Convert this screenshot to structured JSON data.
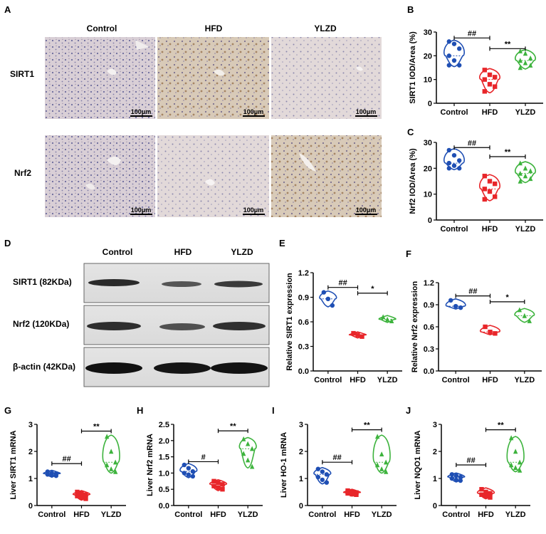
{
  "panel_labels": [
    "A",
    "B",
    "C",
    "D",
    "E",
    "F",
    "G",
    "H",
    "I",
    "J"
  ],
  "ihc": {
    "columns": [
      "Control",
      "HFD",
      "YLZD"
    ],
    "rows": [
      "SIRT1",
      "Nrf2"
    ],
    "scale_bar": "100μm"
  },
  "western_blot": {
    "columns": [
      "Control",
      "HFD",
      "YLZD"
    ],
    "rows": [
      "SIRT1 (82KDa)",
      "Nrf2 (120KDa)",
      "β-actin (42KDa)"
    ]
  },
  "colors": {
    "Control": "#1f4fb4",
    "HFD": "#e8262a",
    "YLZD": "#3db33d"
  },
  "chart_data": [
    {
      "id": "B",
      "type": "violin",
      "ylabel": "SIRT1  IOD/Area (%)",
      "categories": [
        "Control",
        "HFD",
        "YLZD"
      ],
      "ylim": [
        0,
        30
      ],
      "yticks": [
        "0",
        "10",
        "20",
        "30"
      ],
      "points": [
        [
          26,
          25,
          23,
          20,
          18,
          16,
          16
        ],
        [
          14,
          12,
          11,
          10,
          8,
          7,
          5
        ],
        [
          22,
          21,
          19,
          18,
          17,
          16,
          15
        ]
      ],
      "brackets": [
        {
          "from": 0,
          "to": 1,
          "y": 27.5,
          "label": "##"
        },
        {
          "from": 1,
          "to": 2,
          "y": 23,
          "label": "**"
        }
      ]
    },
    {
      "id": "C",
      "type": "violin",
      "ylabel": "Nrf2  IOD/Area (%)",
      "categories": [
        "Control",
        "HFD",
        "YLZD"
      ],
      "ylim": [
        0,
        30
      ],
      "yticks": [
        "0",
        "10",
        "20",
        "30"
      ],
      "points": [
        [
          27,
          25,
          23,
          22,
          21,
          20,
          20
        ],
        [
          17,
          15,
          14,
          12,
          11,
          9,
          8
        ],
        [
          22,
          20,
          19,
          18,
          17,
          16,
          15
        ]
      ],
      "brackets": [
        {
          "from": 0,
          "to": 1,
          "y": 28,
          "label": "##"
        },
        {
          "from": 1,
          "to": 2,
          "y": 24.5,
          "label": "**"
        }
      ]
    },
    {
      "id": "E",
      "type": "violin",
      "ylabel": "Relative SIRT1 expression",
      "categories": [
        "Control",
        "HFD",
        "YLZD"
      ],
      "ylim": [
        0,
        1.2
      ],
      "yticks": [
        "0.0",
        "0.3",
        "0.6",
        "0.9",
        "1.2"
      ],
      "points": [
        [
          0.96,
          0.88,
          0.8
        ],
        [
          0.46,
          0.44,
          0.42
        ],
        [
          0.66,
          0.63,
          0.61
        ]
      ],
      "brackets": [
        {
          "from": 0,
          "to": 1,
          "y": 1.02,
          "label": "##"
        },
        {
          "from": 1,
          "to": 2,
          "y": 0.95,
          "label": "*"
        }
      ]
    },
    {
      "id": "F",
      "type": "violin",
      "ylabel": "Relative Nrf2 expression",
      "categories": [
        "Control",
        "HFD",
        "YLZD"
      ],
      "ylim": [
        0,
        1.2
      ],
      "yticks": [
        "0.0",
        "0.3",
        "0.6",
        "0.9",
        "1.2"
      ],
      "points": [
        [
          0.96,
          0.88,
          0.86
        ],
        [
          0.6,
          0.53,
          0.51
        ],
        [
          0.83,
          0.75,
          0.68
        ]
      ],
      "brackets": [
        {
          "from": 0,
          "to": 1,
          "y": 1.02,
          "label": "##"
        },
        {
          "from": 1,
          "to": 2,
          "y": 0.94,
          "label": "*"
        }
      ]
    },
    {
      "id": "G",
      "type": "violin",
      "ylabel": "Liver SIRT1 mRNA",
      "categories": [
        "Control",
        "HFD",
        "YLZD"
      ],
      "ylim": [
        0,
        3
      ],
      "yticks": [
        "0",
        "1",
        "2",
        "3"
      ],
      "points": [
        [
          1.25,
          1.2,
          1.18,
          1.15,
          1.12,
          1.1
        ],
        [
          0.5,
          0.45,
          0.4,
          0.35,
          0.3,
          0.25
        ],
        [
          2.55,
          2.0,
          1.6,
          1.5,
          1.35,
          1.25
        ]
      ],
      "brackets": [
        {
          "from": 0,
          "to": 1,
          "y": 1.55,
          "label": "##"
        },
        {
          "from": 1,
          "to": 2,
          "y": 2.75,
          "label": "**"
        }
      ]
    },
    {
      "id": "H",
      "type": "violin",
      "ylabel": "Liver Nrf2 mRNA",
      "categories": [
        "Control",
        "HFD",
        "YLZD"
      ],
      "ylim": [
        0,
        2.5
      ],
      "yticks": [
        "0.0",
        "0.5",
        "1.0",
        "1.5",
        "2.0",
        "2.5"
      ],
      "points": [
        [
          1.25,
          1.15,
          1.05,
          1.0,
          0.95,
          0.9
        ],
        [
          0.75,
          0.7,
          0.65,
          0.6,
          0.55,
          0.5
        ],
        [
          2.05,
          1.9,
          1.75,
          1.6,
          1.4,
          1.2
        ]
      ],
      "brackets": [
        {
          "from": 0,
          "to": 1,
          "y": 1.35,
          "label": "#"
        },
        {
          "from": 1,
          "to": 2,
          "y": 2.3,
          "label": "**"
        }
      ]
    },
    {
      "id": "I",
      "type": "violin",
      "ylabel": "Liver HO-1 mRNA",
      "categories": [
        "Control",
        "HFD",
        "YLZD"
      ],
      "ylim": [
        0,
        3
      ],
      "yticks": [
        "0",
        "1",
        "2",
        "3"
      ],
      "points": [
        [
          1.35,
          1.25,
          1.15,
          1.05,
          0.95,
          0.85
        ],
        [
          0.55,
          0.5,
          0.48,
          0.45,
          0.42,
          0.4
        ],
        [
          2.55,
          1.9,
          1.6,
          1.5,
          1.35,
          1.25
        ]
      ],
      "brackets": [
        {
          "from": 0,
          "to": 1,
          "y": 1.6,
          "label": "##"
        },
        {
          "from": 1,
          "to": 2,
          "y": 2.8,
          "label": "**"
        }
      ]
    },
    {
      "id": "J",
      "type": "violin",
      "ylabel": "Liver NQO1 mRNA",
      "categories": [
        "Control",
        "HFD",
        "YLZD"
      ],
      "ylim": [
        0,
        3
      ],
      "yticks": [
        "0",
        "1",
        "2",
        "3"
      ],
      "points": [
        [
          1.15,
          1.1,
          1.05,
          1.0,
          0.95,
          0.92
        ],
        [
          0.6,
          0.5,
          0.45,
          0.4,
          0.35,
          0.3
        ],
        [
          2.5,
          2.0,
          1.6,
          1.5,
          1.4,
          1.3
        ]
      ],
      "brackets": [
        {
          "from": 0,
          "to": 1,
          "y": 1.5,
          "label": "##"
        },
        {
          "from": 1,
          "to": 2,
          "y": 2.8,
          "label": "**"
        }
      ]
    }
  ]
}
